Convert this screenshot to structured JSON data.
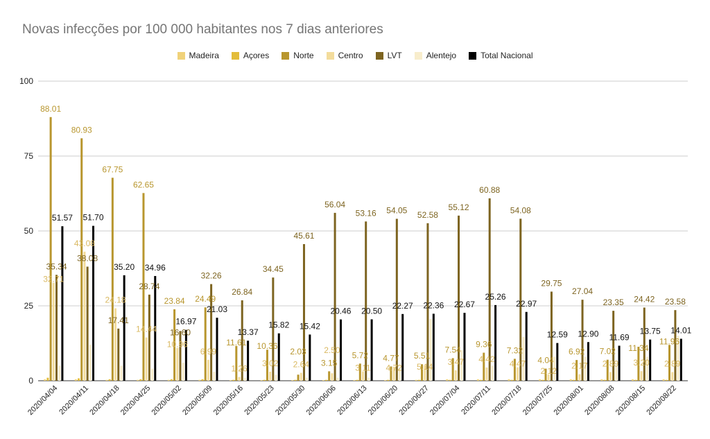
{
  "chart_data": {
    "type": "bar",
    "title": "Novas infecções por 100 000 habitantes nos 7 dias anteriores",
    "xlabel": "",
    "ylabel": "",
    "ylim": [
      0,
      100
    ],
    "yticks": [
      "0",
      "25",
      "50",
      "75",
      "100"
    ],
    "legend_position": "top",
    "grid": true,
    "categories": [
      "2020/04/04",
      "2020/04/11",
      "2020/04/18",
      "2020/04/25",
      "2020/05/02",
      "2020/05/09",
      "2020/05/16",
      "2020/05/23",
      "2020/05/30",
      "2020/06/06",
      "2020/06/13",
      "2020/06/20",
      "2020/06/27",
      "2020/07/04",
      "2020/07/11",
      "2020/07/18",
      "2020/07/25",
      "2020/08/01",
      "2020/08/08",
      "2020/08/15",
      "2020/08/22"
    ],
    "series": [
      {
        "name": "Madeira",
        "color": "#f0d27a",
        "show_labels": false,
        "values": [
          0.5,
          0.5,
          0.3,
          0.3,
          0.3,
          0.3,
          0.2,
          0.2,
          0.2,
          0.2,
          0.2,
          0.2,
          0.3,
          0.5,
          0.5,
          0.5,
          0.5,
          0.5,
          0.5,
          0.5,
          0.5
        ]
      },
      {
        "name": "Açores",
        "color": "#e3bd3c",
        "show_labels": false,
        "values": [
          1.0,
          0.8,
          0.5,
          0.5,
          0.5,
          0.5,
          0.3,
          0.3,
          0.3,
          0.3,
          0.3,
          0.3,
          0.3,
          0.3,
          0.3,
          0.3,
          0.3,
          0.3,
          0.3,
          0.3,
          0.3
        ]
      },
      {
        "name": "Norte",
        "color": "#b8962e",
        "show_labels": true,
        "values": [
          88.01,
          80.93,
          67.75,
          62.65,
          23.84,
          24.49,
          11.61,
          10.36,
          2.03,
          3.15,
          5.72,
          4.77,
          5.51,
          7.54,
          9.36,
          7.32,
          4.04,
          6.92,
          7.02,
          11.34,
          11.96
        ]
      },
      {
        "name": "Centro",
        "color": "#f3dc9c",
        "show_labels": true,
        "values": [
          32.71,
          43.08,
          24.18,
          14.44,
          10.96,
          6.99,
          1.26,
          3.02,
          2.64,
          2.5,
          3.11,
          4.72,
          5.14,
          3.47,
          4.42,
          4.47,
          2.12,
          2.17,
          2.89,
          3.2,
          2.89
        ]
      },
      {
        "name": "LVT",
        "color": "#7d6420",
        "show_labels": true,
        "values": [
          35.34,
          38.08,
          17.41,
          28.74,
          16.6,
          32.26,
          26.84,
          34.45,
          45.61,
          56.04,
          53.16,
          54.05,
          52.58,
          55.12,
          60.88,
          54.08,
          29.75,
          27.04,
          23.35,
          24.42,
          23.58
        ]
      },
      {
        "name": "Alentejo",
        "color": "#f8edcc",
        "show_labels": false,
        "values": [
          5.0,
          12.0,
          5.0,
          4.0,
          6.0,
          3.0,
          1.0,
          2.0,
          1.0,
          1.0,
          1.0,
          4.0,
          20.6,
          10.2,
          5.0,
          14.6,
          8.0,
          8.0,
          5.0,
          8.0,
          15.0
        ]
      },
      {
        "name": "Total Nacional",
        "color": "#000000",
        "show_labels": true,
        "values": [
          51.57,
          51.7,
          35.2,
          34.96,
          16.97,
          21.03,
          13.37,
          15.82,
          15.42,
          20.46,
          20.5,
          22.27,
          22.36,
          22.67,
          25.26,
          22.97,
          12.59,
          12.9,
          11.69,
          13.75,
          14.01
        ]
      }
    ]
  }
}
